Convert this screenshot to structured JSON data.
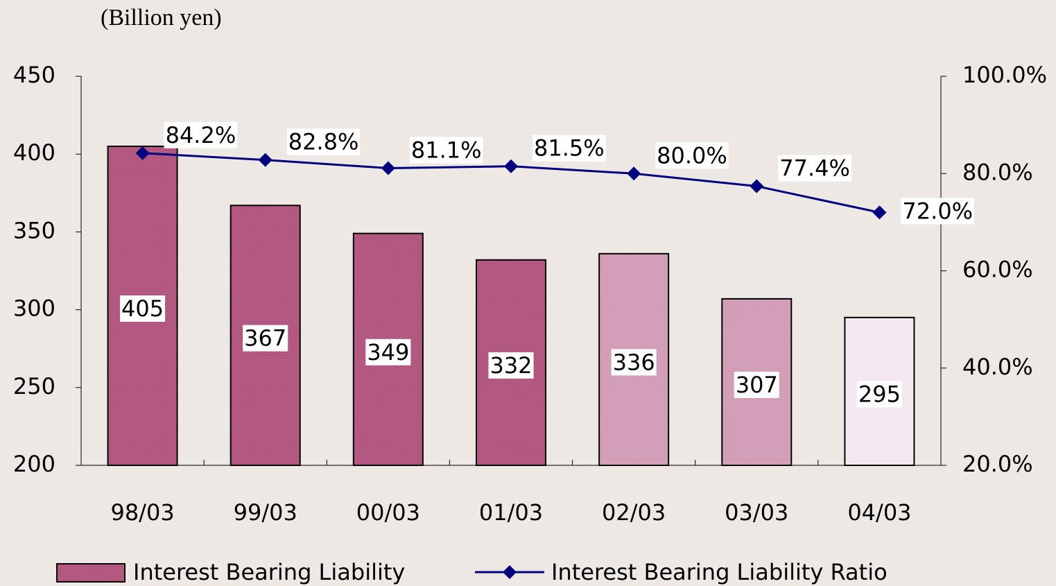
{
  "chart_data": {
    "type": "bar_line",
    "y_label": "(Billion yen)",
    "categories": [
      "98/03",
      "99/03",
      "00/03",
      "01/03",
      "02/03",
      "03/03",
      "04/03"
    ],
    "series": [
      {
        "name": "Interest Bearing Liability",
        "type": "bar",
        "color": "#a8426f",
        "colors": [
          "#a8426f",
          "#a8426f",
          "#a8426f",
          "#a8426f",
          "#cc92ad",
          "#cc92ad",
          "#f3e6ee"
        ],
        "values": [
          405,
          367,
          349,
          332,
          336,
          307,
          295
        ]
      },
      {
        "name": "Interest Bearing Liability Ratio",
        "type": "line",
        "axis": "y2",
        "color": "#00007f",
        "values": [
          84.2,
          82.8,
          81.1,
          81.5,
          80.0,
          77.4,
          72.0
        ],
        "value_labels": [
          "84.2%",
          "82.8%",
          "81.1%",
          "81.5%",
          "80.0%",
          "77.4%",
          "72.0%"
        ]
      }
    ],
    "ylim": [
      200,
      450
    ],
    "yticks": [
      200,
      250,
      300,
      350,
      400,
      450
    ],
    "y2lim": [
      20,
      100
    ],
    "y2ticks": [
      {
        "value": 20,
        "label": "20.0%"
      },
      {
        "value": 40,
        "label": "40.0%"
      },
      {
        "value": 60,
        "label": "60.0%"
      },
      {
        "value": 80,
        "label": "80.0%"
      },
      {
        "value": 100,
        "label": "100.0%"
      }
    ],
    "legend": "bottom"
  }
}
